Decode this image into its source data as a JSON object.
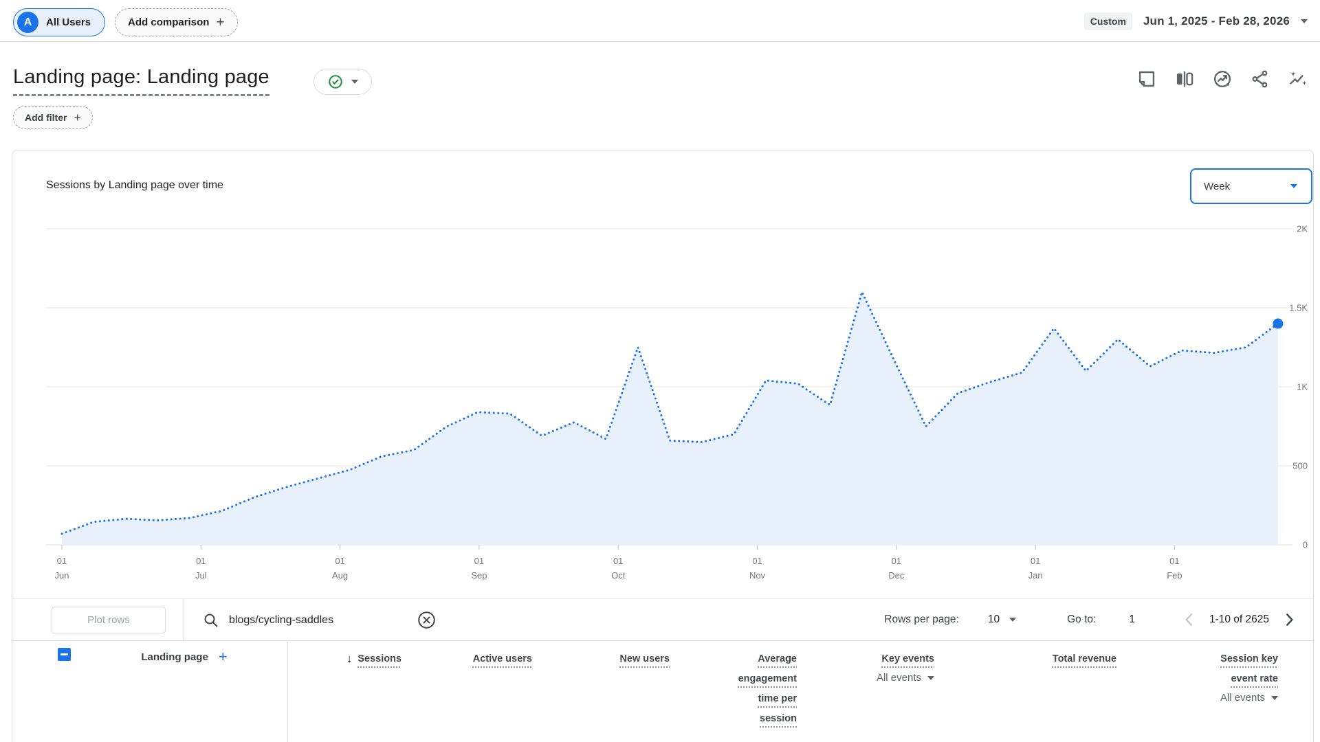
{
  "comparison_bar": {
    "avatar_letter": "A",
    "all_users_label": "All Users",
    "add_comparison_label": "Add comparison"
  },
  "date_range": {
    "badge": "Custom",
    "range": "Jun 1, 2025 - Feb 28, 2026"
  },
  "report_header": {
    "title": "Landing page: Landing page",
    "add_filter_label": "Add filter"
  },
  "icons": {
    "plus": "+",
    "sort_descending": "↓"
  },
  "chart_card": {
    "title": "Sessions by Landing page over time",
    "granularity": "Week"
  },
  "chart_data": {
    "type": "area",
    "title": "Sessions by Landing page over time",
    "series_name": "Sessions",
    "granularity": "Week",
    "line_style": "dotted",
    "line_color": "#1a73e8",
    "fill_color": "#e8f1fb",
    "grid": true,
    "legend": "none",
    "ylim": [
      0,
      2000
    ],
    "y_ticks": [
      "0",
      "500",
      "1K",
      "1.5K",
      "2K"
    ],
    "y_tick_values": [
      0,
      500,
      1000,
      1500,
      2000
    ],
    "x_tick_day": "01",
    "x_axis_months": [
      "Jun",
      "Jul",
      "Aug",
      "Sep",
      "Oct",
      "Nov",
      "Dec",
      "Jan",
      "Feb"
    ],
    "x": [
      "Jun 1",
      "Jun 8",
      "Jun 15",
      "Jun 22",
      "Jun 29",
      "Jul 6",
      "Jul 13",
      "Jul 20",
      "Jul 27",
      "Aug 3",
      "Aug 10",
      "Aug 17",
      "Aug 24",
      "Aug 31",
      "Sep 7",
      "Sep 14",
      "Sep 21",
      "Sep 28",
      "Oct 5",
      "Oct 12",
      "Oct 19",
      "Oct 26",
      "Nov 2",
      "Nov 9",
      "Nov 16",
      "Nov 23",
      "Nov 30",
      "Dec 7",
      "Dec 14",
      "Dec 21",
      "Dec 28",
      "Jan 4",
      "Jan 11",
      "Jan 18",
      "Jan 25",
      "Feb 1",
      "Feb 8",
      "Feb 15",
      "Feb 22"
    ],
    "values": [
      70,
      145,
      165,
      155,
      170,
      215,
      300,
      365,
      420,
      475,
      560,
      600,
      745,
      840,
      830,
      690,
      775,
      670,
      1250,
      660,
      650,
      700,
      1040,
      1020,
      885,
      1600,
      1170,
      750,
      960,
      1030,
      1090,
      1370,
      1100,
      1300,
      1130,
      1230,
      1215,
      1250,
      1400
    ],
    "last_point_marker": true
  },
  "toolbar": {
    "plot_rows_label": "Plot rows",
    "search_value": "blogs/cycling-saddles",
    "rows_per_page_label": "Rows per page:",
    "rows_per_page_value": "10",
    "go_to_label": "Go to:",
    "go_to_value": "1",
    "pagination_range": "1-10 of 2625"
  },
  "table": {
    "dimension": {
      "label": "Landing page"
    },
    "metrics": [
      {
        "label": "Sessions",
        "sorted": true
      },
      {
        "label": "Active users"
      },
      {
        "label": "New users"
      },
      {
        "label": "Average engagement time per session"
      },
      {
        "label": "Key events",
        "sub": "All events"
      },
      {
        "label": "Total revenue"
      },
      {
        "label": "Session key event rate",
        "sub": "All events"
      }
    ]
  }
}
